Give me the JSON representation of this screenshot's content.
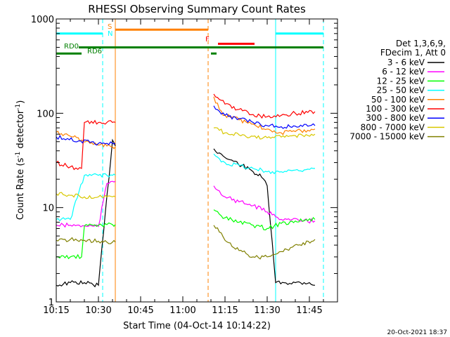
{
  "chart_data": {
    "type": "line",
    "title": "RHESSI Observing Summary Count Rates",
    "xlabel": "Start Time (04-Oct-14 10:14:22)",
    "ylabel_parts": [
      "Count Rate (s",
      "-1",
      " detector",
      "-1",
      ")"
    ],
    "x_unit": "minutes after 10:15",
    "xlim": [
      0,
      100
    ],
    "ylim": [
      1,
      1000
    ],
    "yscale": "log",
    "x_ticks": [
      {
        "x": 0,
        "label": "10:15"
      },
      {
        "x": 15,
        "label": "10:30"
      },
      {
        "x": 30,
        "label": "10:45"
      },
      {
        "x": 45,
        "label": "11:00"
      },
      {
        "x": 60,
        "label": "11:15"
      },
      {
        "x": 75,
        "label": "11:30"
      },
      {
        "x": 90,
        "label": "11:45"
      }
    ],
    "y_ticks": [
      {
        "y": 1,
        "label": "1"
      },
      {
        "y": 10,
        "label": "10"
      },
      {
        "y": 100,
        "label": "100"
      },
      {
        "y": 1000,
        "label": "1000"
      }
    ],
    "legend_position": "right",
    "legend_header": [
      "Det 1,3,6,9,",
      "FDecim 1, Att 0"
    ],
    "series": [
      {
        "name": "3 - 6 keV",
        "color": "#000000",
        "x": [
          0,
          5,
          10,
          15,
          20,
          21,
          55,
          56,
          58,
          60,
          63,
          66,
          70,
          73,
          75,
          78,
          81,
          85,
          90,
          92
        ],
        "y": [
          1.5,
          1.6,
          1.6,
          1.5,
          52,
          45,
          null,
          42,
          38,
          34,
          31,
          28,
          24,
          21,
          17,
          1.6,
          1.6,
          1.6,
          1.6,
          1.5
        ]
      },
      {
        "name": "6 - 12 keV",
        "color": "#ff00ff",
        "x": [
          0,
          5,
          10,
          15,
          18,
          20,
          21,
          55,
          56,
          58,
          60,
          65,
          70,
          75,
          78,
          82,
          87,
          92
        ],
        "y": [
          6.5,
          6.5,
          6.4,
          6.3,
          18,
          19,
          19,
          null,
          17,
          15,
          13,
          11.5,
          10.5,
          9,
          8,
          7.5,
          7.2,
          7.2
        ]
      },
      {
        "name": "12 - 25 keV",
        "color": "#00ff00",
        "x": [
          0,
          5,
          9,
          10,
          15,
          18,
          20,
          21,
          55,
          56,
          58,
          60,
          65,
          70,
          75,
          80,
          85,
          92
        ],
        "y": [
          3,
          3,
          3,
          6.4,
          6.5,
          6.6,
          6.6,
          6.6,
          null,
          9.5,
          8.5,
          7.8,
          7,
          6.5,
          6,
          6.8,
          7.2,
          7.5
        ]
      },
      {
        "name": "25 - 50 keV",
        "color": "#00ffff",
        "x": [
          0,
          5,
          10,
          15,
          18,
          20,
          21,
          55,
          56,
          58,
          60,
          65,
          70,
          75,
          80,
          85,
          92
        ],
        "y": [
          7.5,
          7.5,
          22,
          22,
          22,
          22,
          22,
          null,
          37,
          33,
          30,
          28,
          26,
          24,
          24,
          25,
          26
        ]
      },
      {
        "name": "50 - 100 keV",
        "color": "#ff8000",
        "x": [
          0,
          3,
          6,
          9,
          12,
          15,
          18,
          20,
          21,
          55,
          56,
          58,
          60,
          65,
          70,
          75,
          80,
          85,
          92
        ],
        "y": [
          63,
          60,
          56,
          52,
          48,
          46,
          45,
          44,
          44,
          null,
          150,
          110,
          95,
          85,
          77,
          68,
          62,
          64,
          68
        ]
      },
      {
        "name": "100 - 300 keV",
        "color": "#ff0000",
        "x": [
          0,
          5,
          9,
          10,
          15,
          18,
          20,
          21,
          55,
          56,
          58,
          60,
          65,
          70,
          75,
          80,
          85,
          92
        ],
        "y": [
          30,
          27,
          26,
          80,
          80,
          80,
          80,
          80,
          null,
          160,
          140,
          125,
          110,
          97,
          92,
          95,
          100,
          104
        ]
      },
      {
        "name": "300 - 800 keV",
        "color": "#0000ff",
        "x": [
          0,
          4,
          8,
          12,
          15,
          18,
          20,
          21,
          55,
          56,
          58,
          60,
          65,
          70,
          75,
          80,
          85,
          92
        ],
        "y": [
          56,
          54,
          51,
          49,
          48,
          48,
          48,
          48,
          null,
          120,
          105,
          95,
          88,
          80,
          74,
          72,
          73,
          74
        ]
      },
      {
        "name": "800 - 7000 keV",
        "color": "#d8c800",
        "x": [
          0,
          5,
          10,
          15,
          18,
          20,
          21,
          55,
          56,
          58,
          60,
          65,
          70,
          75,
          80,
          85,
          92
        ],
        "y": [
          14,
          13.5,
          13,
          13,
          13,
          13,
          13,
          null,
          70,
          66,
          62,
          59,
          57,
          55,
          56,
          58,
          60
        ]
      },
      {
        "name": "7000 - 15000 keV",
        "color": "#808000",
        "x": [
          0,
          5,
          10,
          15,
          18,
          20,
          21,
          55,
          56,
          58,
          60,
          65,
          70,
          75,
          78,
          82,
          86,
          92
        ],
        "y": [
          4.5,
          4.6,
          4.5,
          4.4,
          4.3,
          4.3,
          4.3,
          null,
          6.5,
          5.5,
          4.5,
          3.5,
          3,
          3,
          3.2,
          3.6,
          4,
          4.6
        ]
      }
    ],
    "flag_bars": [
      {
        "label": "",
        "color": "#00ffff",
        "y": 700,
        "segments": [
          [
            0,
            16.5
          ],
          [
            78,
            95
          ]
        ]
      },
      {
        "label": "S",
        "color": "#ff8000",
        "y": 770,
        "segments": [
          [
            21,
            54
          ]
        ]
      },
      {
        "label": "N",
        "color": "#00ffff",
        "y": 700,
        "segments": []
      },
      {
        "label": "F",
        "color": "#ff0000",
        "y": 545,
        "segments": [
          [
            57.5,
            70.5
          ]
        ]
      },
      {
        "label": "RD0",
        "color": "#008000",
        "y": 500,
        "segments": [
          [
            8,
            95
          ]
        ]
      },
      {
        "label": "RD6",
        "color": "#008000",
        "y": 430,
        "segments": [
          [
            0,
            9
          ],
          [
            55,
            57
          ]
        ]
      }
    ],
    "vertical_lines": [
      {
        "x": 0,
        "color": "#00ffff",
        "style": "solid"
      },
      {
        "x": 16.5,
        "color": "#00ffff",
        "style": "dashed"
      },
      {
        "x": 21,
        "color": "#ff8000",
        "style": "solid"
      },
      {
        "x": 54,
        "color": "#ff8000",
        "style": "dashed"
      },
      {
        "x": 78,
        "color": "#00ffff",
        "style": "solid"
      },
      {
        "x": 95,
        "color": "#00ffff",
        "style": "dashed"
      }
    ],
    "footer_date": "20-Oct-2021 18:37"
  }
}
